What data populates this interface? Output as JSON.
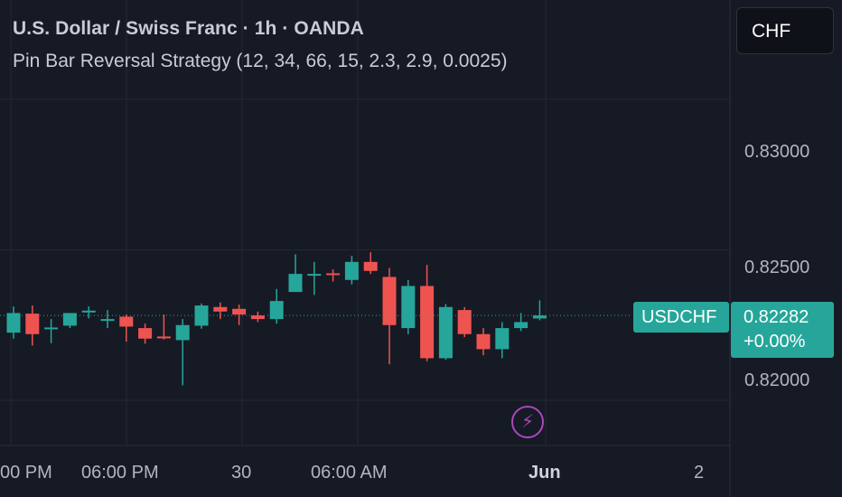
{
  "header": {
    "title": "U.S. Dollar / Swiss Franc · 1h · OANDA",
    "strategy": "Pin Bar Reversal Strategy (12, 34, 66, 15, 2.3, 2.9, 0.0025)"
  },
  "currency_button": {
    "label": "CHF"
  },
  "price_tag": {
    "symbol": "USDCHF",
    "price": "0.82282",
    "change": "+0.00%"
  },
  "event_icon": "lightning-bolt-icon",
  "colors": {
    "up": "#26a69a",
    "down": "#ef5350",
    "background": "#161a25",
    "grid": "#242833",
    "event": "#ab47bc"
  },
  "chart_data": {
    "type": "candlestick",
    "ylim": [
      0.8185,
      0.8333
    ],
    "y_ticks": [
      "0.83000",
      "0.82500",
      "0.82000"
    ],
    "x_ticks": [
      "00 PM",
      "06:00 PM",
      "30",
      "06:00 AM",
      "Jun",
      "2"
    ],
    "last_price": 0.82282,
    "grid": true,
    "candles": [
      {
        "o": 0.82225,
        "h": 0.82312,
        "l": 0.82205,
        "c": 0.8229
      },
      {
        "o": 0.82288,
        "h": 0.82315,
        "l": 0.82182,
        "c": 0.8222
      },
      {
        "o": 0.8224,
        "h": 0.8227,
        "l": 0.8219,
        "c": 0.82242
      },
      {
        "o": 0.82248,
        "h": 0.82285,
        "l": 0.8224,
        "c": 0.8229
      },
      {
        "o": 0.82296,
        "h": 0.82312,
        "l": 0.82272,
        "c": 0.82298
      },
      {
        "o": 0.82268,
        "h": 0.823,
        "l": 0.8224,
        "c": 0.8227
      },
      {
        "o": 0.82278,
        "h": 0.82285,
        "l": 0.82195,
        "c": 0.82245
      },
      {
        "o": 0.8224,
        "h": 0.82255,
        "l": 0.82188,
        "c": 0.82205
      },
      {
        "o": 0.82212,
        "h": 0.82285,
        "l": 0.82202,
        "c": 0.8221
      },
      {
        "o": 0.822,
        "h": 0.8227,
        "l": 0.8205,
        "c": 0.8225
      },
      {
        "o": 0.82248,
        "h": 0.82322,
        "l": 0.82238,
        "c": 0.82315
      },
      {
        "o": 0.8231,
        "h": 0.82325,
        "l": 0.8227,
        "c": 0.82295
      },
      {
        "o": 0.82304,
        "h": 0.82318,
        "l": 0.8225,
        "c": 0.82285
      },
      {
        "o": 0.82282,
        "h": 0.82295,
        "l": 0.8226,
        "c": 0.8227
      },
      {
        "o": 0.8227,
        "h": 0.8237,
        "l": 0.82255,
        "c": 0.8233
      },
      {
        "o": 0.8236,
        "h": 0.82485,
        "l": 0.8236,
        "c": 0.8242
      },
      {
        "o": 0.8242,
        "h": 0.8246,
        "l": 0.8235,
        "c": 0.8242
      },
      {
        "o": 0.82422,
        "h": 0.82435,
        "l": 0.82395,
        "c": 0.8242
      },
      {
        "o": 0.824,
        "h": 0.8248,
        "l": 0.82385,
        "c": 0.8246
      },
      {
        "o": 0.8246,
        "h": 0.82492,
        "l": 0.8242,
        "c": 0.8243
      },
      {
        "o": 0.8241,
        "h": 0.8244,
        "l": 0.8212,
        "c": 0.8225
      },
      {
        "o": 0.8224,
        "h": 0.824,
        "l": 0.8222,
        "c": 0.8238
      },
      {
        "o": 0.8238,
        "h": 0.8245,
        "l": 0.8213,
        "c": 0.8214
      },
      {
        "o": 0.8214,
        "h": 0.8232,
        "l": 0.82135,
        "c": 0.8231
      },
      {
        "o": 0.823,
        "h": 0.8231,
        "l": 0.8221,
        "c": 0.8222
      },
      {
        "o": 0.8222,
        "h": 0.8224,
        "l": 0.8215,
        "c": 0.8217
      },
      {
        "o": 0.8217,
        "h": 0.8226,
        "l": 0.8214,
        "c": 0.8224
      },
      {
        "o": 0.8224,
        "h": 0.8229,
        "l": 0.8223,
        "c": 0.8226
      },
      {
        "o": 0.82272,
        "h": 0.82332,
        "l": 0.82266,
        "c": 0.82282
      }
    ]
  }
}
